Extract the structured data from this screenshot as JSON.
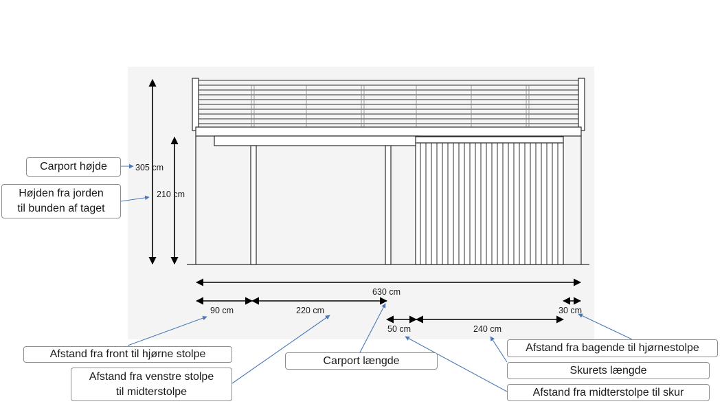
{
  "dimensions": {
    "total_height": "305 cm",
    "roof_underside_height": "210 cm",
    "carport_length": "630 cm",
    "front_to_corner_post": "90 cm",
    "left_to_middle_post": "220 cm",
    "middle_post_to_shed": "50 cm",
    "shed_length": "240 cm",
    "back_to_corner_post": "30 cm"
  },
  "callouts": {
    "carport_height": "Carport højde",
    "roof_height_line1": "Højden fra jorden",
    "roof_height_line2": "til bunden af taget",
    "front_to_corner": "Afstand fra front til hjørne stolpe",
    "left_to_middle_line1": "Afstand fra venstre stolpe",
    "left_to_middle_line2": "til midterstolpe",
    "carport_length": "Carport længde",
    "back_to_corner": "Afstand fra bagende til hjørnestolpe",
    "shed_length": "Skurets længde",
    "middle_to_shed": "Afstand fra midterstolpe til skur"
  },
  "colors": {
    "background_panel": "#f4f4f4",
    "structure": "#2b2b2b",
    "dimension_lines": "#000000",
    "leader_lines": "#4a78b5"
  }
}
